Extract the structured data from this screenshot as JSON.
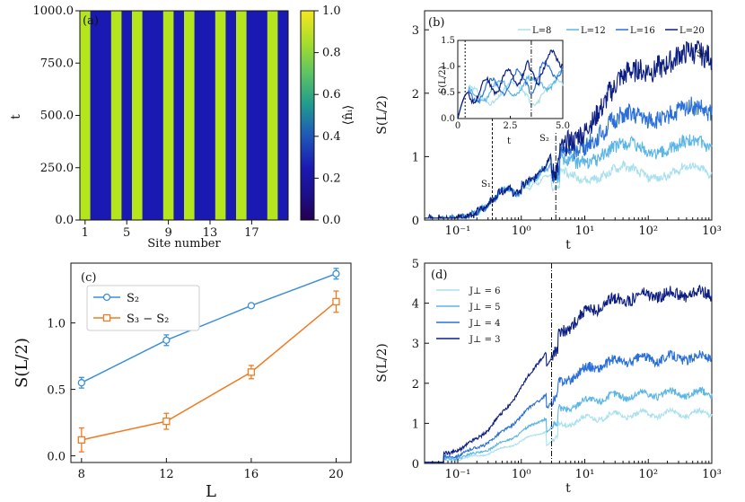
{
  "chart_data": [
    {
      "panel": "(a)",
      "type": "heatmap",
      "xlabel": "Site number",
      "ylabel": "t",
      "xticks": [
        "1",
        "5",
        "9",
        "13",
        "17"
      ],
      "yticks": [
        "0.0",
        "250.0",
        "500.0",
        "750.0",
        "1000.0"
      ],
      "ylim": [
        0,
        1000
      ],
      "sites": 20,
      "occupation": [
        1,
        0,
        0,
        1,
        0,
        1,
        0,
        0,
        1,
        0,
        1,
        0,
        0,
        1,
        0,
        1,
        0,
        0,
        1,
        0
      ],
      "colorbar_label": "⟨n̂ᵢ⟩",
      "colorbar_ticks": [
        "0.0",
        "0.2",
        "0.4",
        "0.6",
        "0.8",
        "1.0"
      ],
      "colors": {
        "high": "#b5e51d",
        "low": "#1a1ab2"
      }
    },
    {
      "panel": "(b)",
      "type": "line",
      "xscale": "log",
      "xlim": [
        0.03,
        1000
      ],
      "ylim": [
        0,
        3.3
      ],
      "xlabel": "t",
      "ylabel": "S(L/2)",
      "xticks": [
        "10⁻¹",
        "10⁰",
        "10¹",
        "10²",
        "10³"
      ],
      "yticks": [
        "0",
        "1",
        "2",
        "3"
      ],
      "legend": [
        "L=8",
        "L=12",
        "L=16",
        "L=20"
      ],
      "series_colors": [
        "#a8e0ee",
        "#5bb5e6",
        "#2a70d8",
        "#0c1e82"
      ],
      "plateaus": [
        0.75,
        1.15,
        1.7,
        2.6
      ],
      "markers": {
        "S1_t": 0.35,
        "S2_t": 3.5
      },
      "annotations": [
        "S₁",
        "S₂",
        "S₃"
      ],
      "inset": {
        "xlabel": "t",
        "ylabel": "S(L/2)",
        "xlim": [
          0,
          5
        ],
        "ylim": [
          0,
          1.5
        ],
        "xticks": [
          "0",
          "2.5",
          "5.0"
        ],
        "yticks": [
          "0.0",
          "0.5",
          "1.0",
          "1.5"
        ]
      }
    },
    {
      "panel": "(c)",
      "type": "line",
      "xlabel": "L",
      "ylabel": "S(L/2)",
      "categories": [
        8,
        12,
        16,
        20
      ],
      "xlim": [
        7.5,
        20.7
      ],
      "ylim": [
        -0.05,
        1.45
      ],
      "xticks": [
        "8",
        "12",
        "16",
        "20"
      ],
      "yticks": [
        "0.0",
        "0.5",
        "1.0"
      ],
      "series": [
        {
          "name": "S₂",
          "values": [
            0.55,
            0.87,
            1.13,
            1.37
          ],
          "errors": [
            0.04,
            0.04,
            0.015,
            0.04
          ],
          "color": "#3b8fd6",
          "marker": "circle"
        },
        {
          "name": "S₃ − S₂",
          "values": [
            0.12,
            0.26,
            0.63,
            1.16
          ],
          "errors": [
            0.09,
            0.06,
            0.05,
            0.08
          ],
          "color": "#ef7b22",
          "marker": "square"
        }
      ]
    },
    {
      "panel": "(d)",
      "type": "line",
      "xscale": "log",
      "xlim": [
        0.03,
        1000
      ],
      "ylim": [
        0,
        5
      ],
      "xlabel": "t",
      "ylabel": "S(L/2)",
      "xticks": [
        "10⁻¹",
        "10⁰",
        "10¹",
        "10²",
        "10³"
      ],
      "yticks": [
        "0",
        "1",
        "2",
        "3",
        "4",
        "5"
      ],
      "legend": [
        "J⊥ = 6",
        "J⊥ = 5",
        "J⊥ = 4",
        "J⊥ = 3"
      ],
      "series_colors": [
        "#a8e0ee",
        "#5bb5e6",
        "#2a70d8",
        "#0c1e82"
      ],
      "plateaus": [
        1.25,
        1.75,
        2.65,
        4.25
      ],
      "marker_t": 3.0
    }
  ]
}
